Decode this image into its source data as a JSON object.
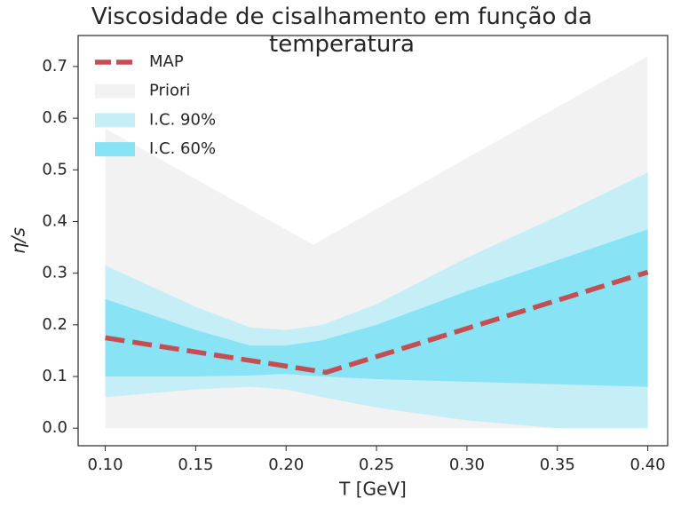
{
  "chart_data": {
    "type": "line",
    "title": "Viscosidade de cisalhamento em função da temperatura",
    "x_label": "T [GeV]",
    "y_label": "η/s",
    "xlim": [
      0.085,
      0.411
    ],
    "ylim": [
      -0.034,
      0.76
    ],
    "xticks": [
      {
        "value": 0.1,
        "label": "0.10"
      },
      0.15,
      {
        "value": 0.2,
        "label": "0.20"
      },
      0.25,
      {
        "value": 0.3,
        "label": "0.30"
      },
      0.35,
      {
        "value": 0.4,
        "label": "0.40"
      }
    ],
    "yticks": [
      {
        "value": 0,
        "label": "0.0"
      },
      0.1,
      0.2,
      0.3,
      0.4,
      0.5,
      0.6,
      0.7
    ],
    "legend": "upper left",
    "series": [
      {
        "name": "MAP",
        "type": "line",
        "color": "#c44e52",
        "x": [
          0.1,
          0.222,
          0.4
        ],
        "values": [
          0.175,
          0.108,
          0.302
        ]
      },
      {
        "name": "Priori",
        "type": "band",
        "color": "#f2f2f2",
        "x": [
          0.1,
          0.215,
          0.4
        ],
        "upper": [
          0.58,
          0.355,
          0.72
        ],
        "lower": [
          0,
          0,
          0
        ]
      },
      {
        "name": "I.C. 90%",
        "type": "band",
        "color": "#c6eef6",
        "x": [
          0.1,
          0.15,
          0.18,
          0.2,
          0.22,
          0.25,
          0.3,
          0.35,
          0.4
        ],
        "upper": [
          0.315,
          0.235,
          0.195,
          0.19,
          0.2,
          0.24,
          0.33,
          0.41,
          0.495
        ],
        "lower": [
          0.06,
          0.075,
          0.08,
          0.075,
          0.06,
          0.04,
          0.015,
          0,
          0
        ]
      },
      {
        "name": "I.C. 60%",
        "type": "band",
        "color": "#88e3f5",
        "x": [
          0.1,
          0.15,
          0.18,
          0.2,
          0.22,
          0.25,
          0.3,
          0.35,
          0.4
        ],
        "upper": [
          0.25,
          0.19,
          0.16,
          0.16,
          0.17,
          0.2,
          0.265,
          0.325,
          0.385
        ],
        "lower": [
          0.1,
          0.1,
          0.102,
          0.105,
          0.1,
          0.095,
          0.09,
          0.085,
          0.08
        ]
      }
    ]
  }
}
